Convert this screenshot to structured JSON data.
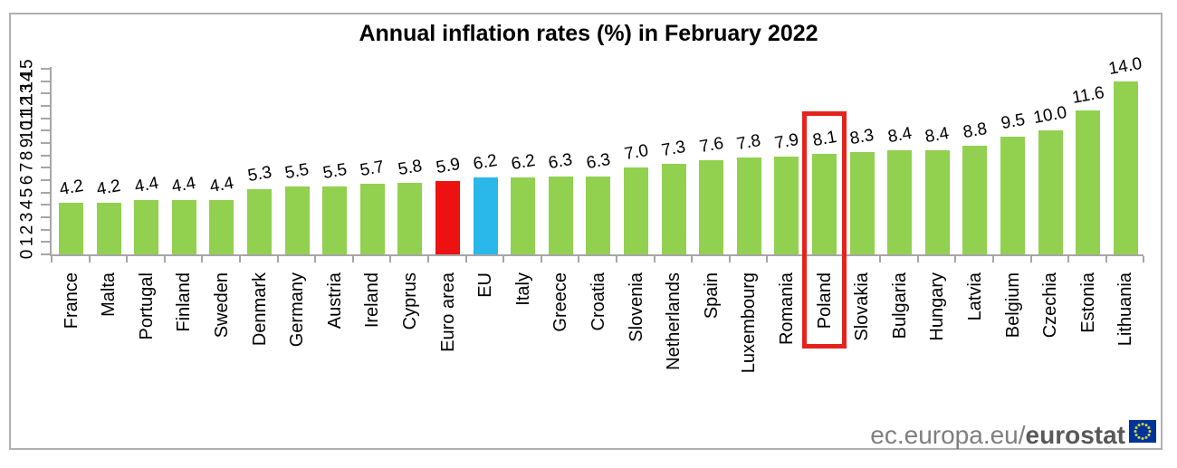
{
  "chart_data": {
    "type": "bar",
    "title": "Annual inflation rates (%) in February 2022",
    "categories": [
      "France",
      "Malta",
      "Portugal",
      "Finland",
      "Sweden",
      "Denmark",
      "Germany",
      "Austria",
      "Ireland",
      "Cyprus",
      "Euro area",
      "EU",
      "Italy",
      "Greece",
      "Croatia",
      "Slovenia",
      "Netherlands",
      "Spain",
      "Luxembourg",
      "Romania",
      "Poland",
      "Slovakia",
      "Bulgaria",
      "Hungary",
      "Latvia",
      "Belgium",
      "Czechia",
      "Estonia",
      "Lithuania"
    ],
    "values": [
      4.2,
      4.2,
      4.4,
      4.4,
      4.4,
      5.3,
      5.5,
      5.5,
      5.7,
      5.8,
      5.9,
      6.2,
      6.2,
      6.3,
      6.3,
      7.0,
      7.3,
      7.6,
      7.8,
      7.9,
      8.1,
      8.3,
      8.4,
      8.4,
      8.8,
      9.5,
      10.0,
      11.6,
      14.0
    ],
    "value_labels": true,
    "xlabel": "",
    "ylabel": "",
    "ylim": [
      0,
      15
    ],
    "ytick_step": 1,
    "grid": false,
    "legend": "none",
    "colors": {
      "bar_default": "#92d050",
      "special_bars": {
        "Euro area": "#ee1111",
        "EU": "#2ab8ea"
      },
      "axis": "#a6a6a6",
      "text": "#000000",
      "highlight_box": "#e2241d"
    },
    "highlight": {
      "category": "Poland"
    }
  },
  "footer": {
    "logo_prefix": "ec.europa.eu/",
    "logo_name": "eurostat",
    "flag_icon": "eu-flag-icon",
    "flag_colors": {
      "background": "#003399",
      "stars": "#cdd54a"
    }
  }
}
